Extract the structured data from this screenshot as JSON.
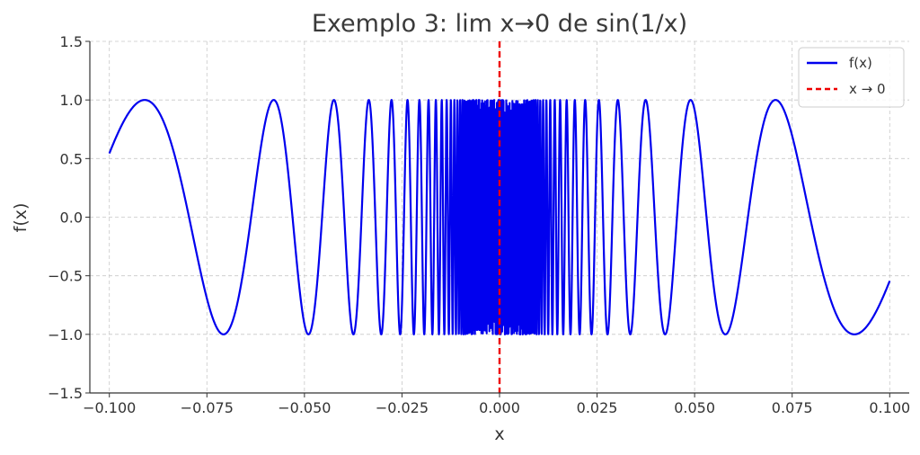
{
  "chart_data": {
    "type": "line",
    "title": "Exemplo 3: lim x→0 de sin(1/x)",
    "xlabel": "x",
    "ylabel": "f(x)",
    "xlim": [
      -0.105,
      0.105
    ],
    "ylim": [
      -1.5,
      1.5
    ],
    "x_ticks": [
      -0.1,
      -0.075,
      -0.05,
      -0.025,
      0.0,
      0.025,
      0.05,
      0.075,
      0.1
    ],
    "x_tick_labels": [
      "−0.100",
      "−0.075",
      "−0.050",
      "−0.025",
      "0.000",
      "0.025",
      "0.050",
      "0.075",
      "0.100"
    ],
    "y_ticks": [
      -1.5,
      -1.0,
      -0.5,
      0.0,
      0.5,
      1.0,
      1.5
    ],
    "y_tick_labels": [
      "−1.5",
      "−1.0",
      "−0.5",
      "0.0",
      "0.5",
      "1.0",
      "1.5"
    ],
    "grid": true,
    "legend_position": "top-right",
    "series": [
      {
        "name": "f(x)",
        "function": "sin(1/x)",
        "x_range": [
          -0.1,
          0.1
        ],
        "color": "#0000ee",
        "style": "solid"
      },
      {
        "name": "x → 0",
        "vertical_line_x": 0.0,
        "color": "#ee0000",
        "style": "dashed"
      }
    ]
  }
}
